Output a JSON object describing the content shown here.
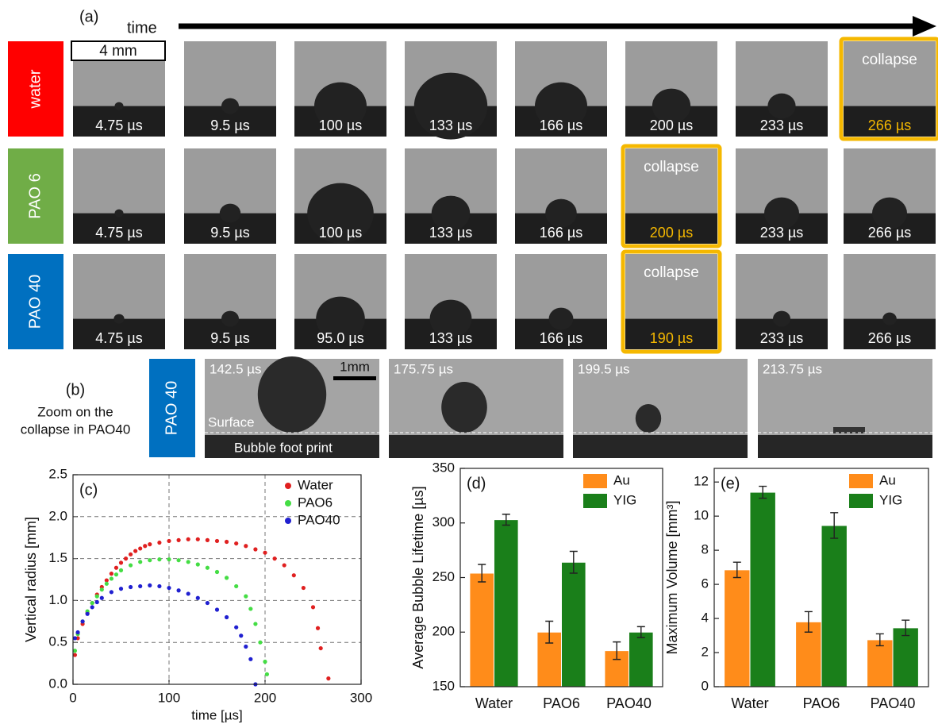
{
  "panel_a": {
    "label": "(a)",
    "time_label": "time",
    "scale_label": "4 mm",
    "rows": [
      {
        "name": "water",
        "frames": [
          {
            "time": "4.75 µs"
          },
          {
            "time": "9.5 µs"
          },
          {
            "time": "100 µs"
          },
          {
            "time": "133 µs"
          },
          {
            "time": "166 µs"
          },
          {
            "time": "200 µs"
          },
          {
            "time": "233 µs"
          },
          {
            "time": "266 µs",
            "note": "collapse"
          }
        ]
      },
      {
        "name": "PAO 6",
        "frames": [
          {
            "time": "4.75 µs"
          },
          {
            "time": "9.5 µs"
          },
          {
            "time": "100 µs"
          },
          {
            "time": "133 µs"
          },
          {
            "time": "166 µs"
          },
          {
            "time": "200 µs",
            "note": "collapse"
          },
          {
            "time": "233 µs"
          },
          {
            "time": "266 µs"
          }
        ]
      },
      {
        "name": "PAO 40",
        "frames": [
          {
            "time": "4.75 µs"
          },
          {
            "time": "9.5 µs"
          },
          {
            "time": "95.0 µs"
          },
          {
            "time": "133 µs"
          },
          {
            "time": "166 µs"
          },
          {
            "time": "190 µs",
            "note": "collapse"
          },
          {
            "time": "233 µs"
          },
          {
            "time": "266 µs"
          }
        ]
      }
    ]
  },
  "panel_b": {
    "label": "(b)",
    "caption": [
      "Zoom on the",
      "collapse in PAO40"
    ],
    "row_label": "PAO 40",
    "scale_label": "1mm",
    "surface_label": "Surface",
    "footprint_label": "Bubble foot print",
    "times": [
      "142.5 µs",
      "175.75 µs",
      "199.5 µs",
      "213.75 µs"
    ]
  },
  "chart_data": [
    {
      "type": "scatter",
      "panel_label": "(c)",
      "x_label": "time [µs]",
      "y_label": "Vertical radius [mm]",
      "xlim": [
        0,
        300
      ],
      "ylim": [
        0,
        2.5
      ],
      "xticks": [
        0,
        100,
        200,
        300
      ],
      "yticks": [
        {
          "value": 0,
          "label": "0.0"
        },
        0.5,
        {
          "value": 1,
          "label": "1.0"
        },
        1.5,
        {
          "value": 2,
          "label": "2.0"
        },
        2.5
      ],
      "grid": true,
      "legend": "upper right",
      "series": [
        {
          "name": "Water",
          "color": "#e02020",
          "x": [
            2,
            5,
            10,
            15,
            20,
            25,
            30,
            35,
            40,
            45,
            50,
            55,
            60,
            65,
            70,
            75,
            80,
            90,
            100,
            110,
            120,
            130,
            140,
            150,
            160,
            170,
            180,
            190,
            200,
            210,
            220,
            230,
            240,
            250,
            255,
            258,
            266
          ],
          "values": [
            0.35,
            0.55,
            0.72,
            0.85,
            0.97,
            1.07,
            1.16,
            1.24,
            1.32,
            1.39,
            1.45,
            1.5,
            1.55,
            1.59,
            1.62,
            1.65,
            1.67,
            1.69,
            1.71,
            1.72,
            1.73,
            1.73,
            1.72,
            1.71,
            1.7,
            1.68,
            1.65,
            1.61,
            1.57,
            1.5,
            1.42,
            1.3,
            1.15,
            0.92,
            0.67,
            0.43,
            0.07
          ]
        },
        {
          "name": "PAO6",
          "color": "#44dd44",
          "x": [
            2,
            5,
            10,
            15,
            20,
            25,
            30,
            35,
            40,
            45,
            50,
            60,
            70,
            80,
            90,
            100,
            110,
            120,
            130,
            140,
            150,
            160,
            170,
            180,
            185,
            190,
            195,
            200,
            202
          ],
          "values": [
            0.4,
            0.6,
            0.75,
            0.87,
            0.97,
            1.05,
            1.13,
            1.2,
            1.26,
            1.31,
            1.36,
            1.42,
            1.46,
            1.48,
            1.49,
            1.49,
            1.48,
            1.46,
            1.43,
            1.39,
            1.34,
            1.27,
            1.17,
            1.05,
            0.9,
            0.72,
            0.5,
            0.27,
            0.12
          ]
        },
        {
          "name": "PAO40",
          "color": "#2020d0",
          "x": [
            2,
            5,
            10,
            15,
            20,
            25,
            30,
            40,
            50,
            60,
            70,
            80,
            90,
            100,
            110,
            120,
            130,
            140,
            150,
            160,
            170,
            175,
            180,
            185,
            190
          ],
          "values": [
            0.55,
            0.62,
            0.75,
            0.84,
            0.92,
            0.98,
            1.03,
            1.1,
            1.14,
            1.16,
            1.17,
            1.18,
            1.17,
            1.15,
            1.12,
            1.08,
            1.03,
            0.97,
            0.89,
            0.8,
            0.68,
            0.58,
            0.45,
            0.3,
            0.0
          ]
        }
      ]
    },
    {
      "type": "bar",
      "panel_label": "(d)",
      "y_label": "Average Bubble Lifetime [µs]",
      "categories": [
        "Water",
        "PAO6",
        "PAO40"
      ],
      "ylim": [
        150,
        350
      ],
      "yticks": [
        150,
        200,
        250,
        300,
        350
      ],
      "legend": "upper right",
      "series": [
        {
          "name": "Au",
          "color": "#ff8c1a",
          "values": [
            254,
            200,
            183
          ],
          "errors": [
            8,
            10,
            8
          ]
        },
        {
          "name": "YIG",
          "color": "#1a7f1a",
          "values": [
            303,
            264,
            200
          ],
          "errors": [
            5,
            10,
            5
          ]
        }
      ]
    },
    {
      "type": "bar",
      "panel_label": "(e)",
      "y_label": "Maximum Volume [mm³]",
      "categories": [
        "Water",
        "PAO6",
        "PAO40"
      ],
      "ylim": [
        0,
        12.8
      ],
      "yticks": [
        0,
        2,
        4,
        6,
        8,
        10,
        12
      ],
      "legend": "upper right",
      "series": [
        {
          "name": "Au",
          "color": "#ff8c1a",
          "values": [
            6.85,
            3.8,
            2.75
          ],
          "errors": [
            0.45,
            0.6,
            0.35
          ]
        },
        {
          "name": "YIG",
          "color": "#1a7f1a",
          "values": [
            11.4,
            9.45,
            3.45
          ],
          "errors": [
            0.35,
            0.75,
            0.45
          ]
        }
      ]
    }
  ]
}
